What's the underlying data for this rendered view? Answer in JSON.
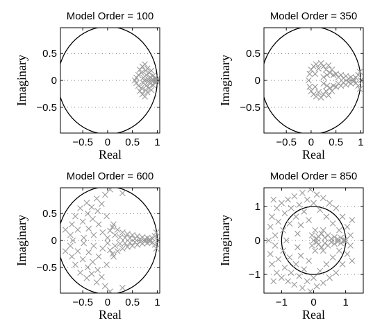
{
  "chart_data": [
    {
      "type": "scatter",
      "title": "Model Order = 100",
      "xlabel": "Real",
      "ylabel": "Imaginary",
      "xlim": [
        -0.95,
        1.05
      ],
      "ylim": [
        -0.98,
        0.98
      ],
      "xticks": [
        -0.5,
        0,
        0.5,
        1
      ],
      "xtick_labels": [
        "−0.5",
        "0",
        "0.5",
        "1"
      ],
      "yticks": [
        0.5,
        0,
        -0.5
      ],
      "ytick_labels": [
        "0.5",
        "0",
        "−0.5"
      ],
      "grid": true,
      "unit_circle_radius": 1,
      "pole_color": "#999999",
      "poles": [
        [
          0.55,
          0.0
        ],
        [
          0.58,
          0.05
        ],
        [
          0.58,
          -0.05
        ],
        [
          0.62,
          0.1
        ],
        [
          0.62,
          -0.1
        ],
        [
          0.65,
          0.2
        ],
        [
          0.65,
          -0.2
        ],
        [
          0.68,
          0.14
        ],
        [
          0.68,
          -0.14
        ],
        [
          0.7,
          0.26
        ],
        [
          0.7,
          -0.26
        ],
        [
          0.72,
          0.05
        ],
        [
          0.72,
          -0.05
        ],
        [
          0.75,
          0.3
        ],
        [
          0.75,
          -0.3
        ],
        [
          0.76,
          0.18
        ],
        [
          0.76,
          -0.18
        ],
        [
          0.78,
          0.1
        ],
        [
          0.78,
          -0.1
        ],
        [
          0.8,
          0.22
        ],
        [
          0.8,
          -0.22
        ],
        [
          0.82,
          0.02
        ],
        [
          0.82,
          -0.02
        ],
        [
          0.84,
          0.14
        ],
        [
          0.84,
          -0.14
        ],
        [
          0.86,
          0.06
        ],
        [
          0.86,
          -0.06
        ],
        [
          0.88,
          0.18
        ],
        [
          0.88,
          -0.18
        ],
        [
          0.9,
          0.02
        ],
        [
          0.9,
          -0.02
        ],
        [
          0.92,
          0.09
        ],
        [
          0.92,
          -0.09
        ],
        [
          0.95,
          0.04
        ],
        [
          0.95,
          -0.04
        ],
        [
          0.97,
          0.0
        ],
        [
          0.99,
          0.02
        ],
        [
          0.99,
          -0.02
        ],
        [
          1.0,
          0.0
        ],
        [
          0.74,
          0.0
        ]
      ]
    },
    {
      "type": "scatter",
      "title": "Model Order = 350",
      "xlabel": "Real",
      "ylabel": "Imaginary",
      "xlim": [
        -0.95,
        1.05
      ],
      "ylim": [
        -0.98,
        0.98
      ],
      "xticks": [
        -0.5,
        0,
        0.5,
        1
      ],
      "xtick_labels": [
        "−0.5",
        "0",
        "0.5",
        "1"
      ],
      "yticks": [
        0.5,
        0,
        -0.5
      ],
      "ytick_labels": [
        "0.5",
        "0",
        "−0.5"
      ],
      "grid": true,
      "unit_circle_radius": 1,
      "pole_color": "#999999",
      "poles": [
        [
          -0.05,
          0.0
        ],
        [
          -0.03,
          0.12
        ],
        [
          -0.03,
          -0.12
        ],
        [
          0.0,
          0.2
        ],
        [
          0.0,
          -0.2
        ],
        [
          0.05,
          0.26
        ],
        [
          0.05,
          -0.26
        ],
        [
          0.1,
          0.3
        ],
        [
          0.1,
          -0.3
        ],
        [
          0.15,
          0.22
        ],
        [
          0.15,
          -0.22
        ],
        [
          0.2,
          0.32
        ],
        [
          0.2,
          -0.32
        ],
        [
          0.25,
          0.26
        ],
        [
          0.25,
          -0.26
        ],
        [
          0.3,
          0.2
        ],
        [
          0.3,
          -0.2
        ],
        [
          0.35,
          0.28
        ],
        [
          0.35,
          -0.28
        ],
        [
          0.38,
          0.14
        ],
        [
          0.38,
          -0.14
        ],
        [
          0.42,
          0.2
        ],
        [
          0.42,
          -0.2
        ],
        [
          0.45,
          0.1
        ],
        [
          0.45,
          -0.1
        ],
        [
          0.5,
          0.12
        ],
        [
          0.5,
          -0.12
        ],
        [
          0.55,
          0.06
        ],
        [
          0.55,
          -0.06
        ],
        [
          0.6,
          0.1
        ],
        [
          0.6,
          -0.1
        ],
        [
          0.65,
          0.04
        ],
        [
          0.65,
          -0.04
        ],
        [
          0.7,
          0.08
        ],
        [
          0.7,
          -0.08
        ],
        [
          0.75,
          0.03
        ],
        [
          0.75,
          -0.03
        ],
        [
          0.8,
          0.06
        ],
        [
          0.8,
          -0.06
        ],
        [
          0.85,
          0.02
        ],
        [
          0.85,
          -0.02
        ],
        [
          0.9,
          0.05
        ],
        [
          0.9,
          -0.05
        ],
        [
          0.95,
          0.1
        ],
        [
          0.95,
          -0.1
        ],
        [
          1.0,
          0.0
        ],
        [
          0.98,
          0.16
        ],
        [
          0.98,
          -0.16
        ],
        [
          0.08,
          0.12
        ],
        [
          0.08,
          -0.12
        ],
        [
          0.25,
          0.06
        ],
        [
          0.25,
          -0.06
        ],
        [
          0.32,
          0.1
        ],
        [
          0.32,
          -0.1
        ]
      ]
    },
    {
      "type": "scatter",
      "title": "Model Order = 600",
      "xlabel": "Real",
      "ylabel": "Imaginary",
      "xlim": [
        -0.95,
        1.05
      ],
      "ylim": [
        -0.98,
        0.98
      ],
      "xticks": [
        -0.5,
        0,
        0.5,
        1
      ],
      "xtick_labels": [
        "−0.5",
        "0",
        "0.5",
        "1"
      ],
      "yticks": [
        0.5,
        0,
        -0.5
      ],
      "ytick_labels": [
        "0.5",
        "0",
        "−0.5"
      ],
      "grid": true,
      "unit_circle_radius": 1,
      "pole_color": "#999999",
      "poles": [
        [
          -0.75,
          0.1
        ],
        [
          -0.75,
          -0.1
        ],
        [
          -0.72,
          0.3
        ],
        [
          -0.72,
          -0.3
        ],
        [
          -0.7,
          0.0
        ],
        [
          -0.65,
          0.45
        ],
        [
          -0.65,
          -0.45
        ],
        [
          -0.6,
          0.2
        ],
        [
          -0.6,
          -0.2
        ],
        [
          -0.55,
          0.6
        ],
        [
          -0.55,
          -0.6
        ],
        [
          -0.5,
          0.35
        ],
        [
          -0.5,
          -0.35
        ],
        [
          -0.48,
          0.05
        ],
        [
          -0.48,
          -0.05
        ],
        [
          -0.42,
          0.7
        ],
        [
          -0.42,
          -0.7
        ],
        [
          -0.4,
          0.5
        ],
        [
          -0.4,
          -0.5
        ],
        [
          -0.38,
          0.22
        ],
        [
          -0.38,
          -0.22
        ],
        [
          -0.32,
          0.62
        ],
        [
          -0.32,
          -0.62
        ],
        [
          -0.3,
          0.4
        ],
        [
          -0.3,
          -0.4
        ],
        [
          -0.28,
          0.1
        ],
        [
          -0.28,
          -0.1
        ],
        [
          -0.22,
          0.78
        ],
        [
          -0.22,
          -0.78
        ],
        [
          -0.2,
          0.55
        ],
        [
          -0.2,
          -0.55
        ],
        [
          -0.18,
          0.3
        ],
        [
          -0.18,
          -0.3
        ],
        [
          -0.12,
          0.68
        ],
        [
          -0.12,
          -0.68
        ],
        [
          -0.1,
          0.15
        ],
        [
          -0.1,
          -0.15
        ],
        [
          -0.05,
          0.85
        ],
        [
          -0.05,
          -0.85
        ],
        [
          -0.02,
          0.45
        ],
        [
          -0.02,
          -0.45
        ],
        [
          0.0,
          0.05
        ],
        [
          0.0,
          -0.05
        ],
        [
          0.05,
          0.18
        ],
        [
          0.05,
          -0.18
        ],
        [
          0.1,
          0.25
        ],
        [
          0.1,
          -0.25
        ],
        [
          0.15,
          0.1
        ],
        [
          0.15,
          -0.1
        ],
        [
          0.2,
          0.2
        ],
        [
          0.2,
          -0.2
        ],
        [
          0.25,
          0.06
        ],
        [
          0.25,
          -0.06
        ],
        [
          0.3,
          0.15
        ],
        [
          0.3,
          -0.15
        ],
        [
          0.35,
          0.05
        ],
        [
          0.35,
          -0.05
        ],
        [
          0.4,
          0.12
        ],
        [
          0.4,
          -0.12
        ],
        [
          0.45,
          0.04
        ],
        [
          0.45,
          -0.04
        ],
        [
          0.5,
          0.1
        ],
        [
          0.5,
          -0.1
        ],
        [
          0.55,
          0.03
        ],
        [
          0.55,
          -0.03
        ],
        [
          0.6,
          0.08
        ],
        [
          0.6,
          -0.08
        ],
        [
          0.65,
          0.02
        ],
        [
          0.65,
          -0.02
        ],
        [
          0.7,
          0.06
        ],
        [
          0.7,
          -0.06
        ],
        [
          0.75,
          0.02
        ],
        [
          0.75,
          -0.02
        ],
        [
          0.8,
          0.05
        ],
        [
          0.8,
          -0.05
        ],
        [
          0.85,
          0.02
        ],
        [
          0.85,
          -0.02
        ],
        [
          0.9,
          0.04
        ],
        [
          0.9,
          -0.04
        ],
        [
          0.95,
          0.08
        ],
        [
          0.95,
          -0.08
        ],
        [
          0.98,
          0.15
        ],
        [
          0.98,
          -0.15
        ],
        [
          1.0,
          0.0
        ],
        [
          0.3,
          0.88
        ],
        [
          0.3,
          -0.88
        ],
        [
          0.05,
          0.95
        ],
        [
          0.05,
          -0.95
        ],
        [
          -0.85,
          0.2
        ],
        [
          -0.85,
          -0.2
        ],
        [
          0.12,
          0.3
        ],
        [
          0.12,
          -0.3
        ]
      ]
    },
    {
      "type": "scatter",
      "title": "Model Order = 850",
      "xlabel": "Real",
      "ylabel": "Imaginary",
      "xlim": [
        -1.55,
        1.55
      ],
      "ylim": [
        -1.55,
        1.55
      ],
      "xticks": [
        -1,
        0,
        1
      ],
      "xtick_labels": [
        "−1",
        "0",
        "1"
      ],
      "yticks": [
        1,
        0,
        -1
      ],
      "ytick_labels": [
        "1",
        "0",
        "−1"
      ],
      "grid": true,
      "unit_circle_radius": 1,
      "pole_color": "#999999",
      "poles": [
        [
          -1.4,
          0.0
        ],
        [
          -1.35,
          0.4
        ],
        [
          -1.35,
          -0.4
        ],
        [
          -1.3,
          0.7
        ],
        [
          -1.3,
          -0.7
        ],
        [
          -1.2,
          0.15
        ],
        [
          -1.2,
          -0.15
        ],
        [
          -1.15,
          0.95
        ],
        [
          -1.15,
          -0.95
        ],
        [
          -1.1,
          0.55
        ],
        [
          -1.1,
          -0.55
        ],
        [
          -1.0,
          1.1
        ],
        [
          -1.0,
          -1.1
        ],
        [
          -0.95,
          0.3
        ],
        [
          -0.95,
          -0.3
        ],
        [
          -0.9,
          0.8
        ],
        [
          -0.9,
          -0.8
        ],
        [
          -0.85,
          0.0
        ],
        [
          -0.8,
          1.2
        ],
        [
          -0.8,
          -1.2
        ],
        [
          -0.75,
          0.5
        ],
        [
          -0.75,
          -0.5
        ],
        [
          -0.7,
          0.95
        ],
        [
          -0.7,
          -0.95
        ],
        [
          -0.6,
          1.3
        ],
        [
          -0.6,
          -1.3
        ],
        [
          -0.55,
          0.7
        ],
        [
          -0.55,
          -0.7
        ],
        [
          -0.5,
          0.2
        ],
        [
          -0.5,
          -0.2
        ],
        [
          -0.45,
          1.05
        ],
        [
          -0.45,
          -1.05
        ],
        [
          -0.4,
          0.45
        ],
        [
          -0.4,
          -0.45
        ],
        [
          -0.35,
          1.4
        ],
        [
          -0.35,
          -1.4
        ],
        [
          -0.3,
          0.85
        ],
        [
          -0.3,
          -0.85
        ],
        [
          -0.2,
          1.2
        ],
        [
          -0.2,
          -1.2
        ],
        [
          -0.15,
          0.6
        ],
        [
          -0.15,
          -0.6
        ],
        [
          -0.1,
          1.5
        ],
        [
          -0.1,
          -1.5
        ],
        [
          0.0,
          1.1
        ],
        [
          0.0,
          -1.1
        ],
        [
          0.05,
          0.3
        ],
        [
          0.05,
          -0.3
        ],
        [
          0.1,
          1.35
        ],
        [
          0.1,
          -1.35
        ],
        [
          0.15,
          0.12
        ],
        [
          0.15,
          -0.12
        ],
        [
          0.2,
          0.9
        ],
        [
          0.2,
          -0.9
        ],
        [
          0.25,
          0.2
        ],
        [
          0.25,
          -0.2
        ],
        [
          0.3,
          1.25
        ],
        [
          0.3,
          -1.25
        ],
        [
          0.35,
          0.08
        ],
        [
          0.35,
          -0.08
        ],
        [
          0.4,
          0.7
        ],
        [
          0.4,
          -0.7
        ],
        [
          0.45,
          0.15
        ],
        [
          0.45,
          -0.15
        ],
        [
          0.5,
          1.1
        ],
        [
          0.5,
          -1.1
        ],
        [
          0.55,
          0.05
        ],
        [
          0.55,
          -0.05
        ],
        [
          0.6,
          0.5
        ],
        [
          0.6,
          -0.5
        ],
        [
          0.65,
          0.1
        ],
        [
          0.65,
          -0.1
        ],
        [
          0.7,
          0.95
        ],
        [
          0.7,
          -0.95
        ],
        [
          0.75,
          0.04
        ],
        [
          0.75,
          -0.04
        ],
        [
          0.8,
          0.3
        ],
        [
          0.8,
          -0.3
        ],
        [
          0.85,
          0.08
        ],
        [
          0.85,
          -0.08
        ],
        [
          0.9,
          0.7
        ],
        [
          0.9,
          -0.7
        ],
        [
          0.95,
          0.02
        ],
        [
          0.95,
          -0.02
        ],
        [
          1.0,
          0.0
        ],
        [
          1.05,
          0.4
        ],
        [
          1.05,
          -0.4
        ],
        [
          1.15,
          0.15
        ],
        [
          1.15,
          -0.15
        ],
        [
          1.2,
          0.6
        ],
        [
          1.2,
          -0.6
        ],
        [
          -1.25,
          1.2
        ],
        [
          -1.25,
          -1.2
        ],
        [
          0.0,
          0.0
        ],
        [
          0.1,
          0.05
        ],
        [
          0.1,
          -0.05
        ],
        [
          -0.05,
          0.15
        ],
        [
          -0.05,
          -0.15
        ],
        [
          0.3,
          0.3
        ],
        [
          0.3,
          -0.3
        ]
      ]
    }
  ]
}
